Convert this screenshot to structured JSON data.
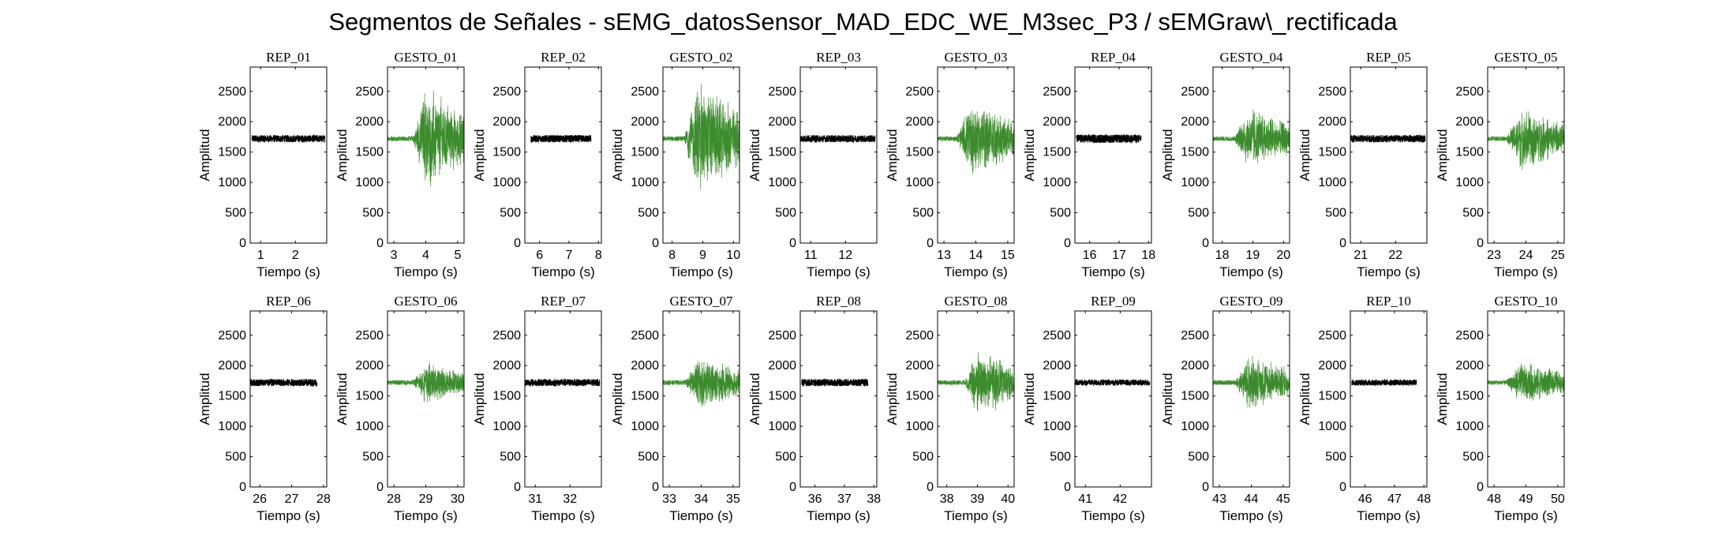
{
  "title": "Segmentos de Señales - sEMG_datosSensor_MAD_EDC_WE_M3sec_P3 / sEMGraw\\_rectificada",
  "colors": {
    "rep": "#000000",
    "gesto": "#3c8c2d"
  },
  "chart_data": [
    {
      "type": "line",
      "title": "REP_01",
      "xlabel": "Tiempo (s)",
      "ylabel": "Amplitud",
      "xlim": [
        0.7,
        2.9
      ],
      "xticks": [
        1,
        2
      ],
      "ylim": [
        0,
        2900
      ],
      "yticks": [
        0,
        500,
        1000,
        1500,
        2000,
        2500
      ],
      "series": [
        {
          "name": "",
          "kind": "rest",
          "t0": 0.75,
          "t1": 2.85,
          "center": 1720,
          "spread": 60,
          "burst": [
            0,
            0
          ],
          "peak": 0
        }
      ]
    },
    {
      "type": "line",
      "title": "GESTO_01",
      "xlabel": "Tiempo (s)",
      "ylabel": "Amplitud",
      "xlim": [
        2.8,
        5.2
      ],
      "xticks": [
        3,
        4,
        5
      ],
      "ylim": [
        0,
        2900
      ],
      "yticks": [
        0,
        500,
        1000,
        1500,
        2000,
        2500
      ],
      "series": [
        {
          "name": "",
          "kind": "burst",
          "t0": 2.8,
          "t1": 5.2,
          "center": 1720,
          "spread": 40,
          "burst": [
            3.6,
            5.2
          ],
          "peak": 900
        }
      ]
    },
    {
      "type": "line",
      "title": "REP_02",
      "xlabel": "Tiempo (s)",
      "ylabel": "Amplitud",
      "xlim": [
        5.5,
        8.1
      ],
      "xticks": [
        6,
        7,
        8
      ],
      "ylim": [
        0,
        2900
      ],
      "yticks": [
        0,
        500,
        1000,
        1500,
        2000,
        2500
      ],
      "series": [
        {
          "name": "",
          "kind": "rest",
          "t0": 5.7,
          "t1": 7.75,
          "center": 1720,
          "spread": 60,
          "burst": [
            0,
            0
          ],
          "peak": 0
        }
      ]
    },
    {
      "type": "line",
      "title": "GESTO_02",
      "xlabel": "Tiempo (s)",
      "ylabel": "Amplitud",
      "xlim": [
        7.7,
        10.2
      ],
      "xticks": [
        8,
        9,
        10
      ],
      "ylim": [
        0,
        2900
      ],
      "yticks": [
        0,
        500,
        1000,
        1500,
        2000,
        2500
      ],
      "series": [
        {
          "name": "",
          "kind": "burst",
          "t0": 7.7,
          "t1": 10.2,
          "center": 1720,
          "spread": 40,
          "burst": [
            8.4,
            10.2
          ],
          "peak": 1000
        }
      ]
    },
    {
      "type": "line",
      "title": "REP_03",
      "xlabel": "Tiempo (s)",
      "ylabel": "Amplitud",
      "xlim": [
        10.7,
        12.9
      ],
      "xticks": [
        11,
        12
      ],
      "ylim": [
        0,
        2900
      ],
      "yticks": [
        0,
        500,
        1000,
        1500,
        2000,
        2500
      ],
      "series": [
        {
          "name": "",
          "kind": "rest",
          "t0": 10.7,
          "t1": 12.85,
          "center": 1720,
          "spread": 60,
          "burst": [
            0,
            0
          ],
          "peak": 0
        }
      ]
    },
    {
      "type": "line",
      "title": "GESTO_03",
      "xlabel": "Tiempo (s)",
      "ylabel": "Amplitud",
      "xlim": [
        12.8,
        15.2
      ],
      "xticks": [
        13,
        14,
        15
      ],
      "ylim": [
        0,
        2900
      ],
      "yticks": [
        0,
        500,
        1000,
        1500,
        2000,
        2500
      ],
      "series": [
        {
          "name": "",
          "kind": "burst",
          "t0": 12.8,
          "t1": 15.2,
          "center": 1720,
          "spread": 40,
          "burst": [
            13.4,
            15.2
          ],
          "peak": 650
        }
      ]
    },
    {
      "type": "line",
      "title": "REP_04",
      "xlabel": "Tiempo (s)",
      "ylabel": "Amplitud",
      "xlim": [
        15.5,
        18.1
      ],
      "xticks": [
        16,
        17,
        18
      ],
      "ylim": [
        0,
        2900
      ],
      "yticks": [
        0,
        500,
        1000,
        1500,
        2000,
        2500
      ],
      "series": [
        {
          "name": "",
          "kind": "rest",
          "t0": 15.55,
          "t1": 17.75,
          "center": 1720,
          "spread": 70,
          "burst": [
            0,
            0
          ],
          "peak": 0
        }
      ]
    },
    {
      "type": "line",
      "title": "GESTO_04",
      "xlabel": "Tiempo (s)",
      "ylabel": "Amplitud",
      "xlim": [
        17.7,
        20.2
      ],
      "xticks": [
        18,
        19,
        20
      ],
      "ylim": [
        0,
        2900
      ],
      "yticks": [
        0,
        500,
        1000,
        1500,
        2000,
        2500
      ],
      "series": [
        {
          "name": "",
          "kind": "burst",
          "t0": 17.7,
          "t1": 20.2,
          "center": 1720,
          "spread": 40,
          "burst": [
            18.4,
            20.2
          ],
          "peak": 500
        }
      ]
    },
    {
      "type": "line",
      "title": "REP_05",
      "xlabel": "Tiempo (s)",
      "ylabel": "Amplitud",
      "xlim": [
        20.7,
        22.9
      ],
      "xticks": [
        21,
        22
      ],
      "ylim": [
        0,
        2900
      ],
      "yticks": [
        0,
        500,
        1000,
        1500,
        2000,
        2500
      ],
      "series": [
        {
          "name": "",
          "kind": "rest",
          "t0": 20.7,
          "t1": 22.85,
          "center": 1720,
          "spread": 60,
          "burst": [
            0,
            0
          ],
          "peak": 0
        }
      ]
    },
    {
      "type": "line",
      "title": "GESTO_05",
      "xlabel": "Tiempo (s)",
      "ylabel": "Amplitud",
      "xlim": [
        22.8,
        25.2
      ],
      "xticks": [
        23,
        24,
        25
      ],
      "ylim": [
        0,
        2900
      ],
      "yticks": [
        0,
        500,
        1000,
        1500,
        2000,
        2500
      ],
      "series": [
        {
          "name": "",
          "kind": "burst",
          "t0": 22.8,
          "t1": 25.2,
          "center": 1720,
          "spread": 40,
          "burst": [
            23.4,
            25.2
          ],
          "peak": 500
        }
      ]
    },
    {
      "type": "line",
      "title": "REP_06",
      "xlabel": "Tiempo (s)",
      "ylabel": "Amplitud",
      "xlim": [
        25.7,
        28.1
      ],
      "xticks": [
        26,
        27,
        28
      ],
      "ylim": [
        0,
        2900
      ],
      "yticks": [
        0,
        500,
        1000,
        1500,
        2000,
        2500
      ],
      "series": [
        {
          "name": "",
          "kind": "rest",
          "t0": 25.7,
          "t1": 27.8,
          "center": 1720,
          "spread": 60,
          "burst": [
            0,
            0
          ],
          "peak": 0
        }
      ]
    },
    {
      "type": "line",
      "title": "GESTO_06",
      "xlabel": "Tiempo (s)",
      "ylabel": "Amplitud",
      "xlim": [
        27.8,
        30.2
      ],
      "xticks": [
        28,
        29,
        30
      ],
      "ylim": [
        0,
        2900
      ],
      "yticks": [
        0,
        500,
        1000,
        1500,
        2000,
        2500
      ],
      "series": [
        {
          "name": "",
          "kind": "burst",
          "t0": 27.8,
          "t1": 30.2,
          "center": 1720,
          "spread": 40,
          "burst": [
            28.6,
            30.2
          ],
          "peak": 320
        }
      ]
    },
    {
      "type": "line",
      "title": "REP_07",
      "xlabel": "Tiempo (s)",
      "ylabel": "Amplitud",
      "xlim": [
        30.7,
        32.9
      ],
      "xticks": [
        31,
        32
      ],
      "ylim": [
        0,
        2900
      ],
      "yticks": [
        0,
        500,
        1000,
        1500,
        2000,
        2500
      ],
      "series": [
        {
          "name": "",
          "kind": "rest",
          "t0": 30.7,
          "t1": 32.85,
          "center": 1720,
          "spread": 60,
          "burst": [
            0,
            0
          ],
          "peak": 0
        }
      ]
    },
    {
      "type": "line",
      "title": "GESTO_07",
      "xlabel": "Tiempo (s)",
      "ylabel": "Amplitud",
      "xlim": [
        32.8,
        35.2
      ],
      "xticks": [
        33,
        34,
        35
      ],
      "ylim": [
        0,
        2900
      ],
      "yticks": [
        0,
        500,
        1000,
        1500,
        2000,
        2500
      ],
      "series": [
        {
          "name": "",
          "kind": "burst",
          "t0": 32.8,
          "t1": 35.2,
          "center": 1720,
          "spread": 40,
          "burst": [
            33.5,
            35.2
          ],
          "peak": 420
        }
      ]
    },
    {
      "type": "line",
      "title": "REP_08",
      "xlabel": "Tiempo (s)",
      "ylabel": "Amplitud",
      "xlim": [
        35.5,
        38.1
      ],
      "xticks": [
        36,
        37,
        38
      ],
      "ylim": [
        0,
        2900
      ],
      "yticks": [
        0,
        500,
        1000,
        1500,
        2000,
        2500
      ],
      "series": [
        {
          "name": "",
          "kind": "rest",
          "t0": 35.55,
          "t1": 37.8,
          "center": 1720,
          "spread": 60,
          "burst": [
            0,
            0
          ],
          "peak": 0
        }
      ]
    },
    {
      "type": "line",
      "title": "GESTO_08",
      "xlabel": "Tiempo (s)",
      "ylabel": "Amplitud",
      "xlim": [
        37.7,
        40.2
      ],
      "xticks": [
        38,
        39,
        40
      ],
      "ylim": [
        0,
        2900
      ],
      "yticks": [
        0,
        500,
        1000,
        1500,
        2000,
        2500
      ],
      "series": [
        {
          "name": "",
          "kind": "burst",
          "t0": 37.7,
          "t1": 40.2,
          "center": 1720,
          "spread": 40,
          "burst": [
            38.6,
            40.2
          ],
          "peak": 600
        }
      ]
    },
    {
      "type": "line",
      "title": "REP_09",
      "xlabel": "Tiempo (s)",
      "ylabel": "Amplitud",
      "xlim": [
        40.7,
        42.9
      ],
      "xticks": [
        41,
        42
      ],
      "ylim": [
        0,
        2900
      ],
      "yticks": [
        0,
        500,
        1000,
        1500,
        2000,
        2500
      ],
      "series": [
        {
          "name": "",
          "kind": "rest",
          "t0": 40.7,
          "t1": 42.85,
          "center": 1720,
          "spread": 50,
          "burst": [
            0,
            0
          ],
          "peak": 0
        }
      ]
    },
    {
      "type": "line",
      "title": "GESTO_09",
      "xlabel": "Tiempo (s)",
      "ylabel": "Amplitud",
      "xlim": [
        42.8,
        45.2
      ],
      "xticks": [
        43,
        44,
        45
      ],
      "ylim": [
        0,
        2900
      ],
      "yticks": [
        0,
        500,
        1000,
        1500,
        2000,
        2500
      ],
      "series": [
        {
          "name": "",
          "kind": "burst",
          "t0": 42.8,
          "t1": 45.2,
          "center": 1720,
          "spread": 40,
          "burst": [
            43.5,
            45.2
          ],
          "peak": 450
        }
      ]
    },
    {
      "type": "line",
      "title": "REP_10",
      "xlabel": "Tiempo (s)",
      "ylabel": "Amplitud",
      "xlim": [
        45.5,
        48.1
      ],
      "xticks": [
        46,
        47,
        48
      ],
      "ylim": [
        0,
        2900
      ],
      "yticks": [
        0,
        500,
        1000,
        1500,
        2000,
        2500
      ],
      "series": [
        {
          "name": "",
          "kind": "rest",
          "t0": 45.55,
          "t1": 47.75,
          "center": 1720,
          "spread": 50,
          "burst": [
            0,
            0
          ],
          "peak": 0
        }
      ]
    },
    {
      "type": "line",
      "title": "GESTO_10",
      "xlabel": "Tiempo (s)",
      "ylabel": "Amplitud",
      "xlim": [
        47.8,
        50.2
      ],
      "xticks": [
        48,
        49,
        50
      ],
      "ylim": [
        0,
        2900
      ],
      "yticks": [
        0,
        500,
        1000,
        1500,
        2000,
        2500
      ],
      "series": [
        {
          "name": "",
          "kind": "burst",
          "t0": 47.8,
          "t1": 50.2,
          "center": 1720,
          "spread": 40,
          "burst": [
            48.4,
            50.2
          ],
          "peak": 330
        }
      ]
    }
  ]
}
